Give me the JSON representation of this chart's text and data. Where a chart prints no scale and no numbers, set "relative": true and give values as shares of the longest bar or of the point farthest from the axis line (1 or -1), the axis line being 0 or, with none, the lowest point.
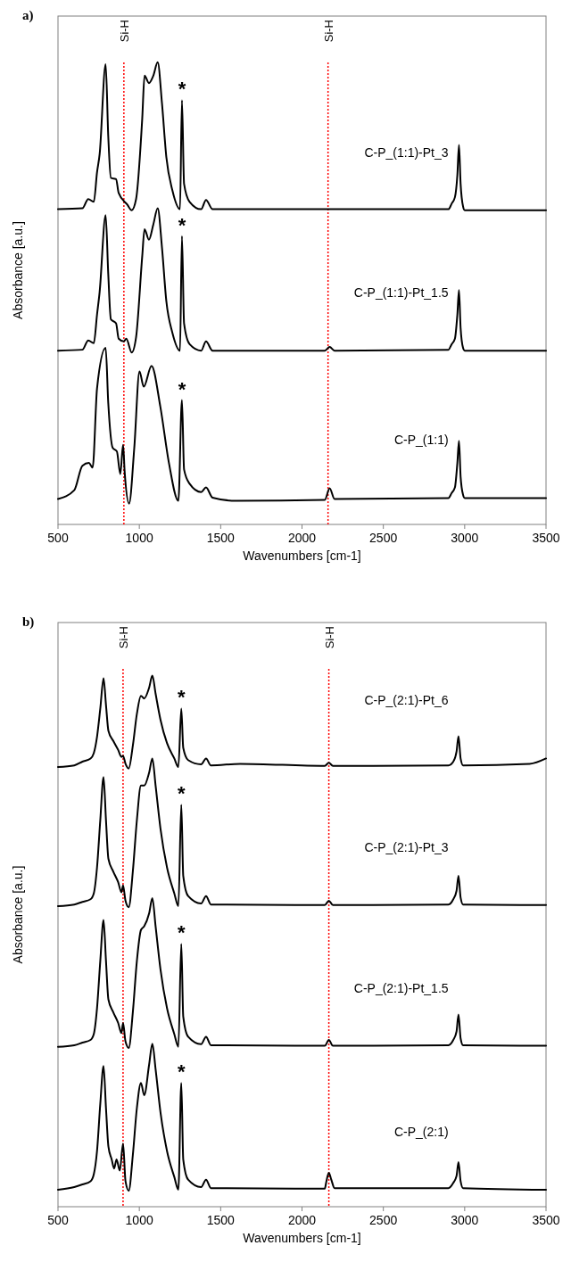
{
  "chart_data": [
    {
      "type": "line",
      "title": "a)",
      "xlabel": "Wavenumbers [cm-1]",
      "ylabel": "Absorbance [a.u.]",
      "relative": true,
      "xlim": [
        500,
        3500
      ],
      "xticks": [
        500,
        1000,
        1500,
        2000,
        2500,
        3000,
        3500
      ],
      "ref_lines": [
        {
          "axis": "x",
          "value": 905,
          "label": "Si-H",
          "color": "#ff0000",
          "line_style": "dotted"
        },
        {
          "axis": "x",
          "value": 2160,
          "label": "Si-H",
          "color": "#ff0000",
          "line_style": "dotted"
        }
      ],
      "annotations": [
        "*",
        "*",
        "*"
      ],
      "series": [
        {
          "name": "C-P_(1:1)-Pt_3",
          "color": "#000000",
          "x": [
            500,
            650,
            686,
            720,
            740,
            756,
            793,
            809,
            825,
            857,
            873,
            926,
            953,
            980,
            1018,
            1032,
            1059,
            1086,
            1113,
            1139,
            1166,
            1203,
            1250,
            1262,
            1275,
            1309,
            1380,
            1410,
            1450,
            2900,
            2920,
            2940,
            2955,
            2965,
            2975,
            2990,
            3000,
            3500
          ],
          "values": [
            0.682,
            0.684,
            0.704,
            0.698,
            0.762,
            0.801,
            0.996,
            0.84,
            0.75,
            0.747,
            0.717,
            0.692,
            0.68,
            0.704,
            0.879,
            0.971,
            0.955,
            0.971,
            1.0,
            0.912,
            0.795,
            0.723,
            0.682,
            0.918,
            0.737,
            0.698,
            0.682,
            0.702,
            0.682,
            0.682,
            0.694,
            0.708,
            0.756,
            0.821,
            0.737,
            0.688,
            0.68,
            0.68
          ]
        },
        {
          "name": "C-P_(1:1)-Pt_1.5",
          "color": "#000000",
          "x": [
            500,
            650,
            686,
            720,
            740,
            756,
            793,
            809,
            825,
            857,
            873,
            905,
            920,
            953,
            980,
            1018,
            1032,
            1059,
            1086,
            1113,
            1139,
            1166,
            1203,
            1250,
            1262,
            1275,
            1309,
            1380,
            1410,
            1450,
            2140,
            2170,
            2200,
            2900,
            2920,
            2940,
            2955,
            2965,
            2975,
            2990,
            3000,
            3500
          ],
          "values": [
            0.376,
            0.378,
            0.398,
            0.392,
            0.454,
            0.503,
            0.669,
            0.542,
            0.444,
            0.435,
            0.402,
            0.396,
            0.402,
            0.372,
            0.405,
            0.581,
            0.639,
            0.616,
            0.649,
            0.684,
            0.6,
            0.483,
            0.415,
            0.376,
            0.624,
            0.435,
            0.39,
            0.376,
            0.396,
            0.376,
            0.376,
            0.384,
            0.376,
            0.378,
            0.39,
            0.402,
            0.454,
            0.507,
            0.425,
            0.382,
            0.376,
            0.376
          ]
        },
        {
          "name": "C-P_(1:1)",
          "color": "#000000",
          "x": [
            500,
            600,
            650,
            690,
            713,
            740,
            793,
            809,
            836,
            862,
            883,
            900,
            910,
            937,
            969,
            1001,
            1027,
            1075,
            1129,
            1182,
            1240,
            1262,
            1275,
            1309,
            1380,
            1410,
            1450,
            1600,
            2140,
            2170,
            2200,
            2900,
            2920,
            2940,
            2955,
            2965,
            2975,
            2990,
            3000,
            3500
          ],
          "values": [
            0.055,
            0.074,
            0.127,
            0.133,
            0.123,
            0.294,
            0.382,
            0.263,
            0.166,
            0.158,
            0.109,
            0.172,
            0.113,
            0.045,
            0.166,
            0.331,
            0.298,
            0.343,
            0.255,
            0.133,
            0.051,
            0.269,
            0.119,
            0.088,
            0.07,
            0.08,
            0.058,
            0.051,
            0.053,
            0.078,
            0.055,
            0.057,
            0.068,
            0.08,
            0.133,
            0.181,
            0.103,
            0.064,
            0.057,
            0.057
          ]
        }
      ]
    },
    {
      "type": "line",
      "title": "b)",
      "xlabel": "Wavenumbers [cm-1]",
      "ylabel": "Absorbance [a.u.]",
      "relative": true,
      "xlim": [
        500,
        3500
      ],
      "xticks": [
        500,
        1000,
        1500,
        2000,
        2500,
        3000,
        3500
      ],
      "ref_lines": [
        {
          "axis": "x",
          "value": 900,
          "label": "Si-H",
          "color": "#ff0000",
          "line_style": "dotted"
        },
        {
          "axis": "x",
          "value": 2165,
          "label": "Si-H",
          "color": "#ff0000",
          "line_style": "dotted"
        }
      ],
      "annotations": [
        "*",
        "*",
        "*",
        "*"
      ],
      "series": [
        {
          "name": "C-P_(2:1)-Pt_6",
          "color": "#000000",
          "x": [
            500,
            600,
            650,
            700,
            720,
            740,
            760,
            780,
            795,
            810,
            840,
            870,
            890,
            900,
            915,
            935,
            960,
            985,
            1010,
            1030,
            1060,
            1080,
            1100,
            1130,
            1170,
            1215,
            1240,
            1258,
            1270,
            1300,
            1380,
            1410,
            1440,
            1620,
            2140,
            2165,
            2190,
            2900,
            2930,
            2950,
            2962,
            2975,
            2990,
            3400,
            3500
          ],
          "values": [
            0.828,
            0.831,
            0.838,
            0.844,
            0.854,
            0.885,
            0.938,
            0.995,
            0.945,
            0.896,
            0.877,
            0.86,
            0.847,
            0.849,
            0.834,
            0.825,
            0.868,
            0.928,
            0.962,
            0.957,
            0.977,
            1.0,
            0.966,
            0.917,
            0.873,
            0.844,
            0.828,
            0.938,
            0.864,
            0.841,
            0.833,
            0.844,
            0.831,
            0.834,
            0.83,
            0.836,
            0.83,
            0.831,
            0.838,
            0.857,
            0.886,
            0.844,
            0.831,
            0.834,
            0.844
          ]
        },
        {
          "name": "C-P_(2:1)-Pt_3",
          "color": "#000000",
          "x": [
            500,
            600,
            650,
            700,
            720,
            740,
            760,
            780,
            795,
            810,
            840,
            870,
            890,
            900,
            915,
            935,
            960,
            985,
            1010,
            1030,
            1060,
            1080,
            1100,
            1130,
            1170,
            1215,
            1240,
            1258,
            1270,
            1300,
            1380,
            1410,
            1440,
            2140,
            2165,
            2190,
            2900,
            2930,
            2950,
            2962,
            2975,
            2990,
            3500
          ],
          "values": [
            0.566,
            0.569,
            0.574,
            0.579,
            0.59,
            0.639,
            0.728,
            0.809,
            0.728,
            0.655,
            0.631,
            0.611,
            0.592,
            0.605,
            0.576,
            0.564,
            0.631,
            0.728,
            0.793,
            0.793,
            0.817,
            0.844,
            0.793,
            0.712,
            0.639,
            0.59,
            0.566,
            0.757,
            0.623,
            0.585,
            0.571,
            0.585,
            0.569,
            0.568,
            0.576,
            0.568,
            0.569,
            0.579,
            0.595,
            0.623,
            0.582,
            0.569,
            0.568
          ]
        },
        {
          "name": "C-P_(2:1)-Pt_1.5",
          "color": "#000000",
          "x": [
            500,
            600,
            650,
            700,
            720,
            740,
            760,
            780,
            795,
            810,
            840,
            870,
            890,
            900,
            915,
            935,
            960,
            985,
            1010,
            1030,
            1060,
            1080,
            1100,
            1130,
            1170,
            1215,
            1240,
            1258,
            1270,
            1300,
            1380,
            1410,
            1440,
            2140,
            2165,
            2190,
            2900,
            2930,
            2950,
            2962,
            2975,
            2990,
            3500
          ],
          "values": [
            0.301,
            0.304,
            0.309,
            0.314,
            0.325,
            0.374,
            0.463,
            0.54,
            0.463,
            0.39,
            0.366,
            0.346,
            0.327,
            0.346,
            0.311,
            0.299,
            0.366,
            0.463,
            0.521,
            0.528,
            0.552,
            0.581,
            0.528,
            0.447,
            0.374,
            0.325,
            0.301,
            0.495,
            0.358,
            0.32,
            0.306,
            0.32,
            0.304,
            0.303,
            0.314,
            0.303,
            0.304,
            0.314,
            0.33,
            0.362,
            0.317,
            0.304,
            0.303
          ]
        },
        {
          "name": "C-P_(2:1)",
          "color": "#000000",
          "x": [
            500,
            600,
            650,
            700,
            720,
            740,
            760,
            780,
            795,
            810,
            830,
            845,
            860,
            880,
            900,
            915,
            935,
            960,
            985,
            1010,
            1030,
            1060,
            1080,
            1100,
            1130,
            1170,
            1215,
            1240,
            1258,
            1270,
            1300,
            1380,
            1410,
            1440,
            2140,
            2150,
            2165,
            2180,
            2200,
            2900,
            2930,
            2950,
            2962,
            2975,
            2990,
            3500
          ],
          "values": [
            0.032,
            0.037,
            0.042,
            0.048,
            0.061,
            0.105,
            0.194,
            0.265,
            0.186,
            0.113,
            0.089,
            0.072,
            0.089,
            0.068,
            0.119,
            0.048,
            0.03,
            0.097,
            0.186,
            0.233,
            0.21,
            0.267,
            0.307,
            0.259,
            0.178,
            0.105,
            0.056,
            0.032,
            0.233,
            0.089,
            0.051,
            0.037,
            0.051,
            0.035,
            0.034,
            0.048,
            0.064,
            0.051,
            0.035,
            0.035,
            0.045,
            0.058,
            0.084,
            0.048,
            0.035,
            0.032
          ]
        }
      ]
    }
  ]
}
